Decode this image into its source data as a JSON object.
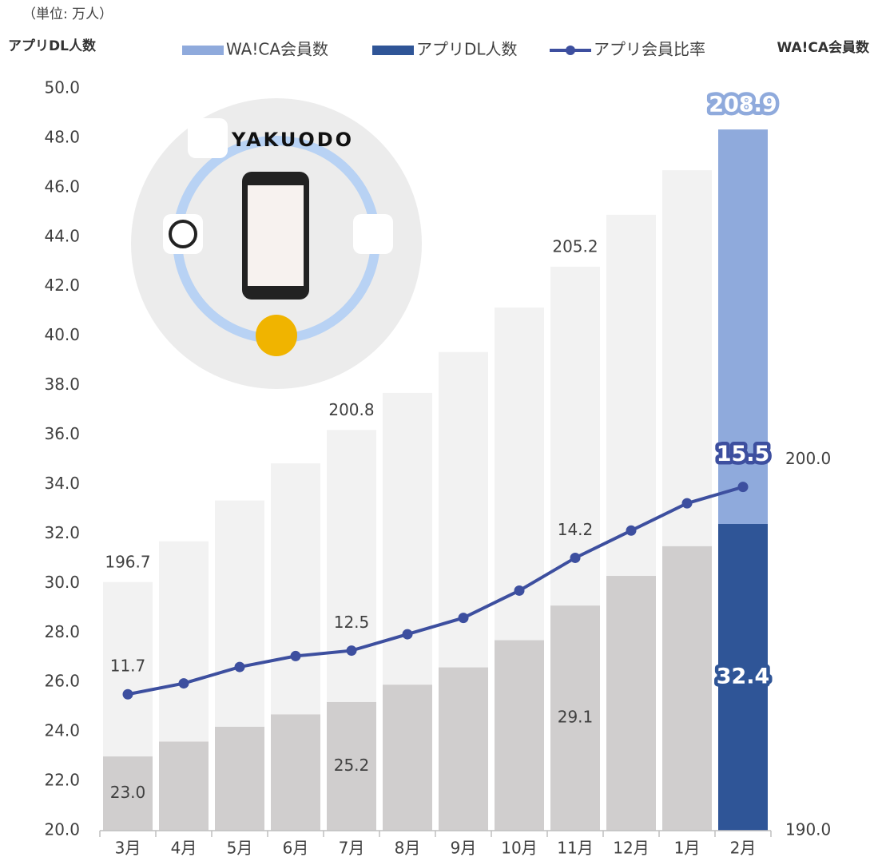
{
  "chart_data": {
    "type": "bar-line",
    "unit_note": "（単位: 万人）",
    "y_label": "アプリDL人数",
    "y2_label": "WA!CA会員数",
    "illustration_logo": "YAKUODO",
    "categories": [
      "3月",
      "4月",
      "5月",
      "6月",
      "7月",
      "8月",
      "9月",
      "10月",
      "11月",
      "12月",
      "1月",
      "2月"
    ],
    "ylim": [
      20,
      50
    ],
    "yticks": [
      {
        "value": 20,
        "label": "20.0"
      },
      {
        "value": 22,
        "label": "22.0"
      },
      {
        "value": 24,
        "label": "24.0"
      },
      {
        "value": 26,
        "label": "26.0"
      },
      {
        "value": 28,
        "label": "28.0"
      },
      {
        "value": 30,
        "label": "30.0"
      },
      {
        "value": 32,
        "label": "32.0"
      },
      {
        "value": 34,
        "label": "34.0"
      },
      {
        "value": 36,
        "label": "36.0"
      },
      {
        "value": 38,
        "label": "38.0"
      },
      {
        "value": 40,
        "label": "40.0"
      },
      {
        "value": 42,
        "label": "42.0"
      },
      {
        "value": 44,
        "label": "44.0"
      },
      {
        "value": 46,
        "label": "46.0"
      },
      {
        "value": 48,
        "label": "48.0"
      },
      {
        "value": 50,
        "label": "50.0"
      }
    ],
    "y2lim": [
      190,
      210
    ],
    "y2ticks": [
      {
        "value": 190,
        "label": "190.0"
      },
      {
        "value": 200,
        "label": "200.0"
      }
    ],
    "y3lim": [
      9.2,
      22.8
    ],
    "series": [
      {
        "name": "WA!CA会員数",
        "type": "bar",
        "axis": "y2",
        "color": "#8faadc",
        "colors": [
          "#f2f2f2",
          "#f2f2f2",
          "#f2f2f2",
          "#f2f2f2",
          "#f2f2f2",
          "#f2f2f2",
          "#f2f2f2",
          "#f2f2f2",
          "#f2f2f2",
          "#f2f2f2",
          "#f2f2f2",
          "#8faadc"
        ],
        "values": [
          196.7,
          197.8,
          198.9,
          199.9,
          200.8,
          201.8,
          202.9,
          204.1,
          205.2,
          206.6,
          207.8,
          208.9
        ],
        "value_labels": [
          "196.7",
          null,
          null,
          null,
          "200.8",
          null,
          null,
          null,
          "205.2",
          null,
          null,
          "208.9"
        ]
      },
      {
        "name": "アプリDL人数",
        "type": "bar",
        "axis": "y",
        "color": "#2f5597",
        "colors": [
          "#d0cece",
          "#d0cece",
          "#d0cece",
          "#d0cece",
          "#d0cece",
          "#d0cece",
          "#d0cece",
          "#d0cece",
          "#d0cece",
          "#d0cece",
          "#d0cece",
          "#2f5597"
        ],
        "values": [
          23.0,
          23.6,
          24.2,
          24.7,
          25.2,
          25.9,
          26.6,
          27.7,
          29.1,
          30.3,
          31.5,
          32.4
        ],
        "value_labels": [
          "23.0",
          null,
          null,
          null,
          "25.2",
          null,
          null,
          null,
          "29.1",
          null,
          null,
          "32.4"
        ]
      },
      {
        "name": "アプリ会員比率",
        "type": "line",
        "axis": "y3",
        "color": "#3d4f9f",
        "values": [
          11.7,
          11.9,
          12.2,
          12.4,
          12.5,
          12.8,
          13.1,
          13.6,
          14.2,
          14.7,
          15.2,
          15.5
        ],
        "value_labels": [
          "11.7",
          null,
          null,
          null,
          "12.5",
          null,
          null,
          null,
          "14.2",
          null,
          null,
          "15.5"
        ]
      }
    ]
  }
}
